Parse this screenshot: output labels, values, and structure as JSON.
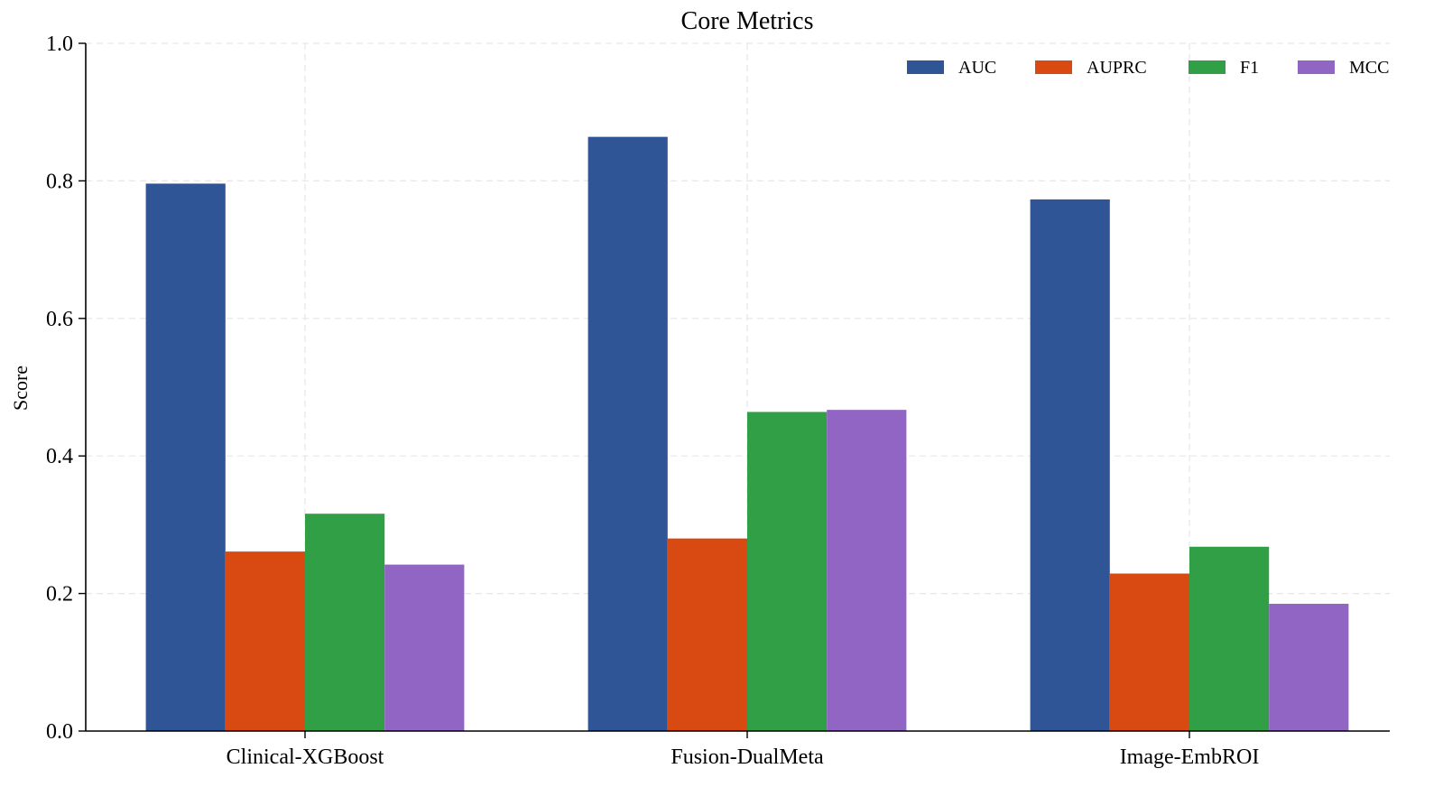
{
  "chart_data": {
    "type": "bar",
    "title": "Core Metrics",
    "xlabel": "",
    "ylabel": "Score",
    "ylim": [
      0,
      1.0
    ],
    "yticks": [
      "0.0",
      "0.2",
      "0.4",
      "0.6",
      "0.8",
      "1.0"
    ],
    "grid": true,
    "legend_position": "top-right",
    "categories": [
      "Clinical-XGBoost",
      "Fusion-DualMeta",
      "Image-EmbROI"
    ],
    "series": [
      {
        "name": "AUC",
        "color": "#2f5597",
        "values": [
          0.796,
          0.864,
          0.773
        ]
      },
      {
        "name": "AUPRC",
        "color": "#d94a12",
        "values": [
          0.261,
          0.28,
          0.229
        ]
      },
      {
        "name": "F1",
        "color": "#319f45",
        "values": [
          0.316,
          0.464,
          0.268
        ]
      },
      {
        "name": "MCC",
        "color": "#9065c4",
        "values": [
          0.242,
          0.467,
          0.185
        ]
      }
    ]
  }
}
